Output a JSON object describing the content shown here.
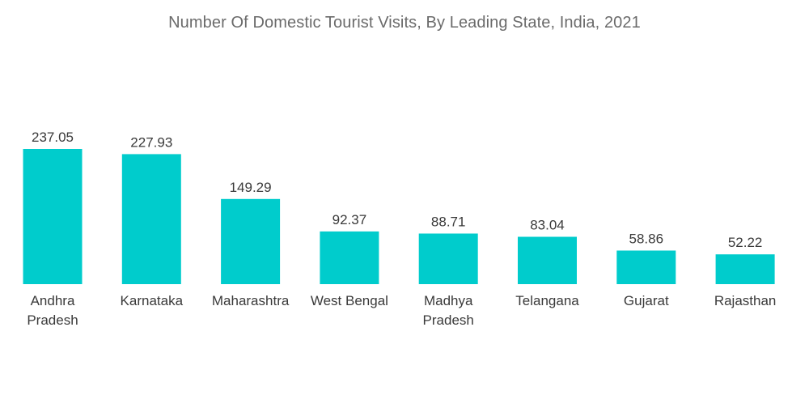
{
  "chart_data": {
    "type": "bar",
    "title": "Number Of Domestic Tourist Visits, By Leading State, India, 2021",
    "categories": [
      [
        "Andhra",
        "Pradesh"
      ],
      [
        "Karnataka"
      ],
      [
        "Maharashtra"
      ],
      [
        "West Bengal"
      ],
      [
        "Madhya",
        "Pradesh"
      ],
      [
        "Telangana"
      ],
      [
        "Gujarat"
      ],
      [
        "Rajasthan"
      ]
    ],
    "values": [
      237.05,
      227.93,
      149.29,
      92.37,
      88.71,
      83.04,
      58.86,
      52.22
    ],
    "value_labels": [
      "237.05",
      "227.93",
      "149.29",
      "92.37",
      "88.71",
      "83.04",
      "58.86",
      "52.22"
    ],
    "xlabel": "",
    "ylabel": "",
    "ylim": [
      0,
      237.05
    ],
    "grid": false,
    "legend": "none",
    "bar_color": "#00cccc"
  }
}
